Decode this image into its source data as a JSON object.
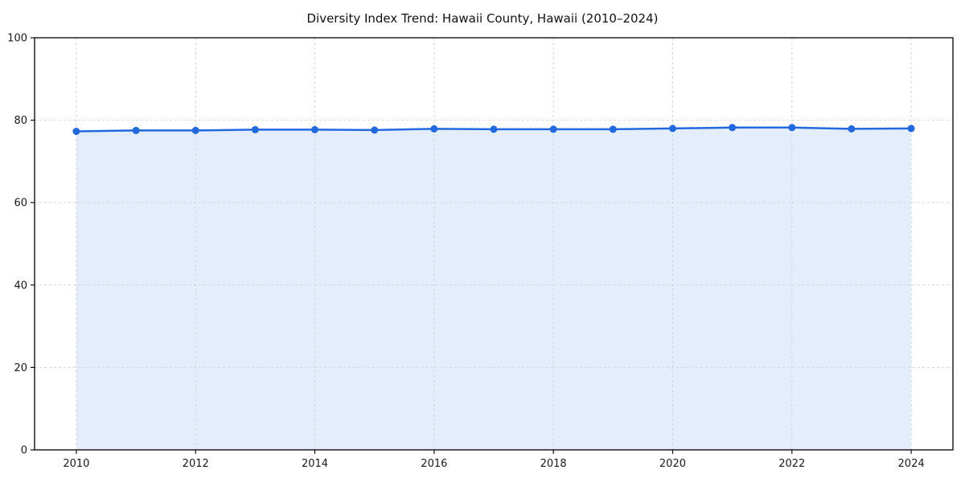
{
  "page": {
    "background": "#ffffff"
  },
  "chart_data": {
    "type": "line",
    "title": "Diversity Index Trend: Hawaii County, Hawaii (2010–2024)",
    "x": [
      2010,
      2011,
      2012,
      2013,
      2014,
      2015,
      2016,
      2017,
      2018,
      2019,
      2020,
      2021,
      2022,
      2023,
      2024
    ],
    "series": [
      {
        "name": "Diversity Index",
        "values": [
          77.3,
          77.5,
          77.5,
          77.7,
          77.7,
          77.6,
          77.9,
          77.8,
          77.8,
          77.8,
          78.0,
          78.2,
          78.2,
          77.9,
          78.0
        ]
      }
    ],
    "xticks": [
      2010,
      2012,
      2014,
      2016,
      2018,
      2020,
      2022,
      2024
    ],
    "yticks": [
      0,
      20,
      40,
      60,
      80,
      100
    ],
    "xlim": [
      2009.3,
      2024.7
    ],
    "ylim": [
      0,
      100
    ],
    "xlabel": "",
    "ylabel": "",
    "grid": true,
    "grid_style": "dashed",
    "legend_position": "none",
    "style": {
      "line_color": "#2269e0",
      "marker_color": "#2269e0",
      "fill_color": "rgba(34, 105, 224, 0.12)",
      "grid_color": "#d4d4d4",
      "spine_color": "#111111",
      "text_color": "#1a1a1a",
      "line_width": 2.5,
      "marker_radius": 4.5
    }
  }
}
